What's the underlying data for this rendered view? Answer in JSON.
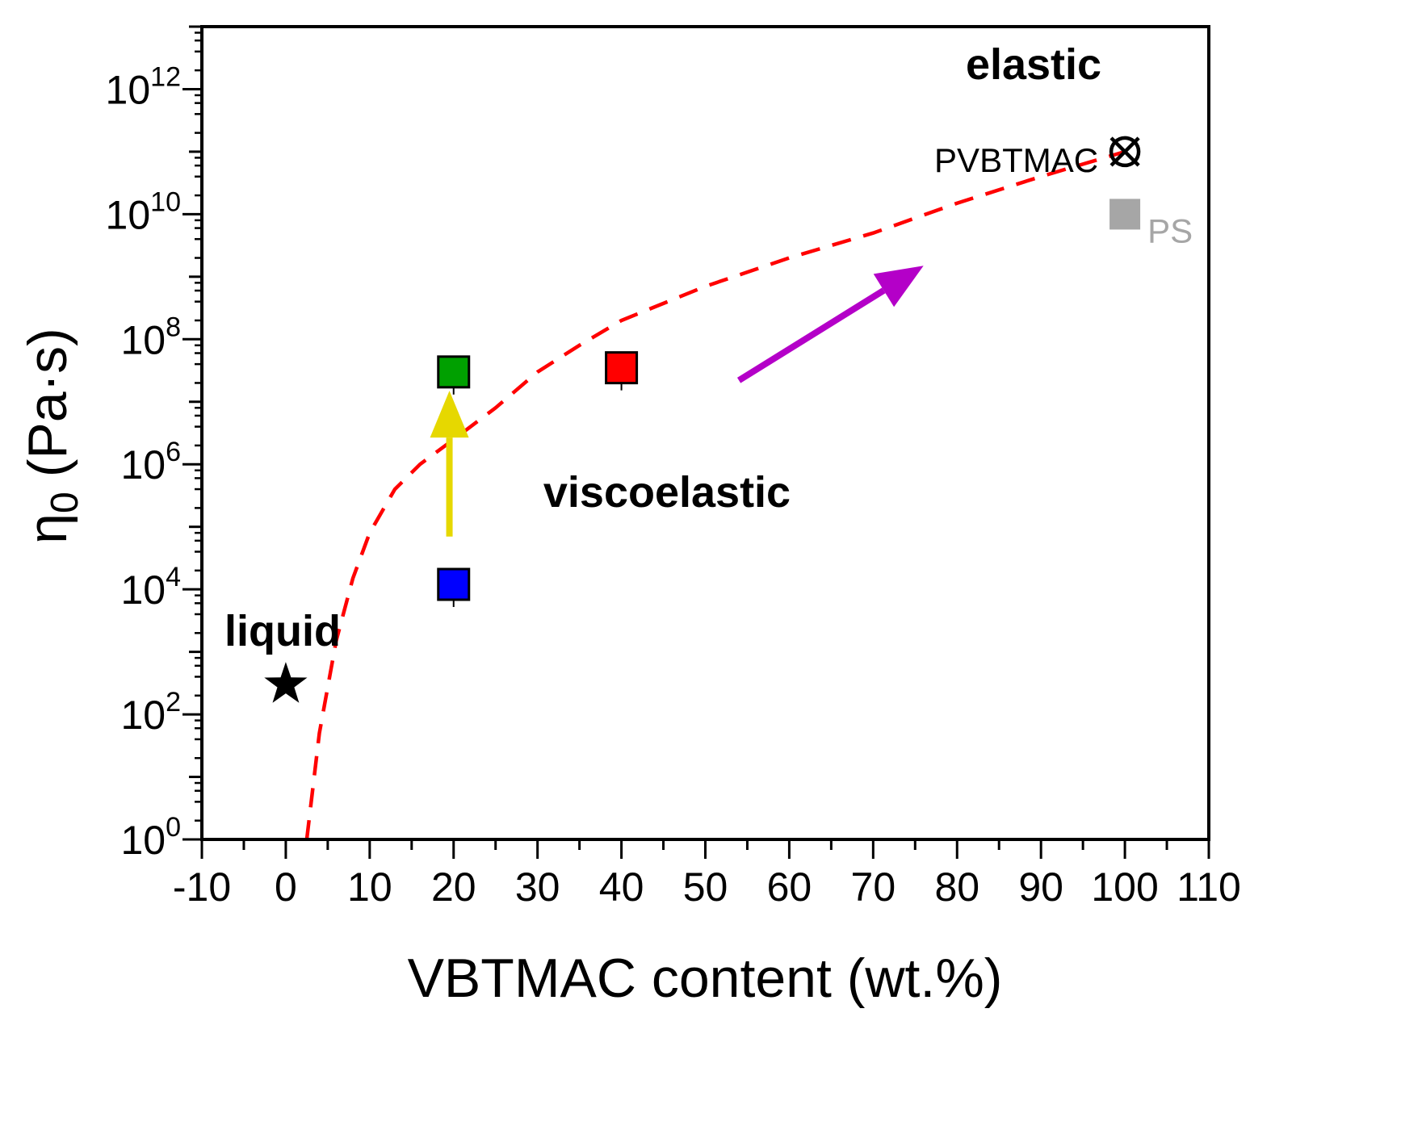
{
  "chart_data": {
    "type": "scatter",
    "xlabel": "VBTMAC content (wt.%)",
    "ylabel_symbol": "η",
    "ylabel_subscript": "0",
    "ylabel_units": "(Pa·s)",
    "xlim": [
      -10,
      110
    ],
    "ylim_log10": [
      0,
      13
    ],
    "y_scale": "log",
    "x_ticks": [
      -10,
      0,
      10,
      20,
      30,
      40,
      50,
      60,
      70,
      80,
      90,
      100,
      110
    ],
    "x_tick_labels": [
      "-10",
      "0",
      "10",
      "20",
      "30",
      "40",
      "50",
      "60",
      "70",
      "80",
      "90",
      "100",
      "110"
    ],
    "y_ticks_exponent": [
      0,
      2,
      4,
      6,
      8,
      10,
      12
    ],
    "y_tick_labels": [
      {
        "base": "10",
        "exp": "0"
      },
      {
        "base": "10",
        "exp": "2"
      },
      {
        "base": "10",
        "exp": "4"
      },
      {
        "base": "10",
        "exp": "6"
      },
      {
        "base": "10",
        "exp": "8"
      },
      {
        "base": "10",
        "exp": "10"
      },
      {
        "base": "10",
        "exp": "12"
      }
    ],
    "points": [
      {
        "name": "star-point",
        "x": 0,
        "y": 300,
        "marker": "star",
        "color": "#000000"
      },
      {
        "name": "blue-point",
        "x": 20,
        "y": 12000,
        "marker": "square",
        "color": "#0000ff"
      },
      {
        "name": "green-point",
        "x": 20,
        "y": 30000000,
        "marker": "square",
        "color": "#00a000"
      },
      {
        "name": "red-point",
        "x": 40,
        "y": 35000000,
        "marker": "square",
        "color": "#ff0000"
      },
      {
        "name": "pvbtmac-point",
        "x": 100,
        "y": 100000000000,
        "marker": "circle-x",
        "color": "#000000",
        "label": "PVBTMAC"
      },
      {
        "name": "ps-point",
        "x": 100,
        "y": 10000000000,
        "marker": "square",
        "color": "#a6a6a6",
        "label": "PS"
      }
    ],
    "trend_curve": {
      "color": "#ff0000",
      "style": "dashed",
      "x": [
        2.5,
        4,
        6,
        8,
        10,
        13,
        16,
        20,
        25,
        30,
        35,
        40,
        50,
        60,
        70,
        80,
        90,
        100
      ],
      "y": [
        1,
        50,
        1500,
        15000,
        80000,
        400000,
        1000000,
        2500000,
        8000000,
        30000000,
        80000000,
        200000000,
        700000000,
        2000000000,
        5000000000,
        15000000000,
        40000000000,
        100000000000
      ]
    },
    "annotations": {
      "liquid": "liquid",
      "viscoelastic": "viscoelastic",
      "elastic": "elastic"
    },
    "arrows": [
      {
        "name": "yellow-arrow",
        "color": "#e6d800",
        "from": [
          19.5,
          70000
        ],
        "to": [
          19.5,
          15000000
        ]
      },
      {
        "name": "purple-arrow",
        "color": "#b400c8",
        "from": [
          54,
          22000000
        ],
        "to": [
          76,
          1500000000
        ]
      }
    ]
  }
}
